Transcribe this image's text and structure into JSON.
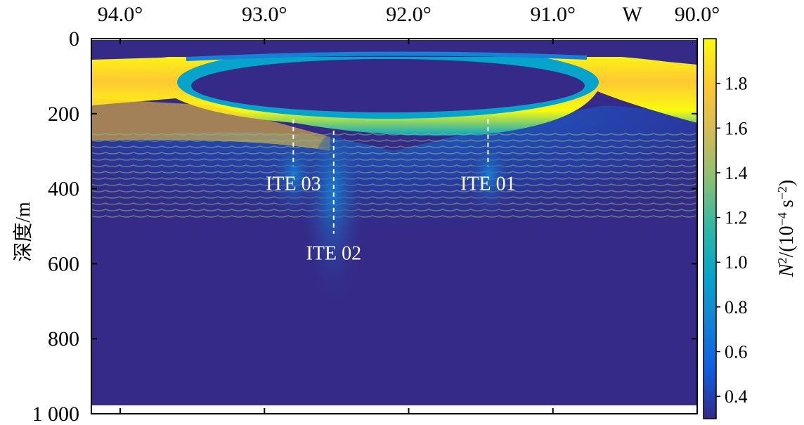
{
  "chart_data": {
    "type": "heatmap",
    "description_variable": "N²",
    "x_axis": {
      "position": "top",
      "ticks": [
        94.0,
        93.0,
        92.0,
        91.0,
        90.0
      ],
      "tick_labels": [
        "94.0°",
        "93.0°",
        "92.0°",
        "91.0°",
        "90.0°"
      ],
      "extra_label": "W",
      "extra_label_at": 90.45,
      "xlim": [
        94.2,
        90.0
      ]
    },
    "y_axis": {
      "label": "深度/m",
      "ticks": [
        0,
        200,
        400,
        600,
        800,
        1000
      ],
      "tick_labels": [
        "0",
        "200",
        "400",
        "600",
        "800",
        "1 000"
      ],
      "ylim": [
        0,
        1000
      ],
      "reversed": true
    },
    "colorbar": {
      "label_var": "N",
      "label_sup": "2",
      "label_rest_open": "/(10",
      "label_exp": "−4",
      "label_unit": " s",
      "label_unit_exp": "−2",
      "label_close": ")",
      "range": [
        0.3,
        2.0
      ],
      "ticks": [
        0.4,
        0.6,
        0.8,
        1.0,
        1.2,
        1.4,
        1.6,
        1.8
      ],
      "tick_labels": [
        "0.4",
        "0.6",
        "0.8",
        "1.0",
        "1.2",
        "1.4",
        "1.6",
        "1.8"
      ],
      "colormap": [
        "#352a87",
        "#0f5cdd",
        "#1481d6",
        "#06a4ca",
        "#2eb7a4",
        "#87bf77",
        "#d1bb59",
        "#fec832",
        "#f9fb0e"
      ]
    },
    "features": {
      "thermocline_top_depth": 55,
      "thermocline_base_depth": 205,
      "low_stratification_lens": {
        "lon_start": 93.5,
        "lon_end": 90.8,
        "depth_top": 85,
        "depth_bottom": 190
      },
      "no_data_bands": [
        [
          0,
          15
        ],
        [
          975,
          1000
        ]
      ]
    },
    "annotations": [
      {
        "label": "ITE 01",
        "lon": 91.45,
        "depth_top": 215,
        "depth_bottom": 340,
        "label_depth": 385
      },
      {
        "label": "ITE 02",
        "lon": 92.52,
        "depth_top": 245,
        "depth_bottom": 520,
        "label_depth": 570
      },
      {
        "label": "ITE 03",
        "lon": 92.8,
        "depth_top": 215,
        "depth_bottom": 340,
        "label_depth": 385
      }
    ]
  }
}
